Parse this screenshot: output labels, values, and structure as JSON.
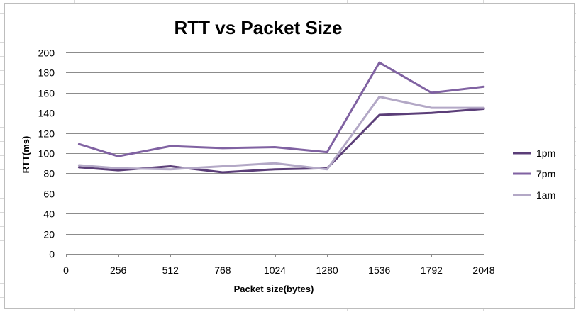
{
  "chart_data": {
    "type": "line",
    "title": "RTT vs Packet Size",
    "xlabel": "Packet size(bytes)",
    "ylabel": "RTT(ms)",
    "x_ticks": [
      "0",
      "256",
      "512",
      "768",
      "1024",
      "1280",
      "1536",
      "1792",
      "2048"
    ],
    "xlim": [
      0,
      2048
    ],
    "y_ticks": [
      "200",
      "180",
      "160",
      "140",
      "120",
      "100",
      "80",
      "60",
      "40",
      "20",
      "0"
    ],
    "ylim": [
      0,
      200
    ],
    "grid": true,
    "legend_position": "right",
    "x": [
      64,
      256,
      512,
      768,
      1024,
      1280,
      1536,
      1792,
      2048
    ],
    "series": [
      {
        "name": "1pm",
        "color": "#5b3e78",
        "values": [
          86,
          83,
          87,
          81,
          84,
          85,
          138,
          140,
          144
        ]
      },
      {
        "name": "7pm",
        "color": "#8062a2",
        "values": [
          109,
          97,
          107,
          105,
          106,
          101,
          190,
          160,
          166
        ]
      },
      {
        "name": "1am",
        "color": "#b3a8c6",
        "values": [
          88,
          85,
          84,
          87,
          90,
          84,
          156,
          145,
          145
        ]
      }
    ]
  }
}
